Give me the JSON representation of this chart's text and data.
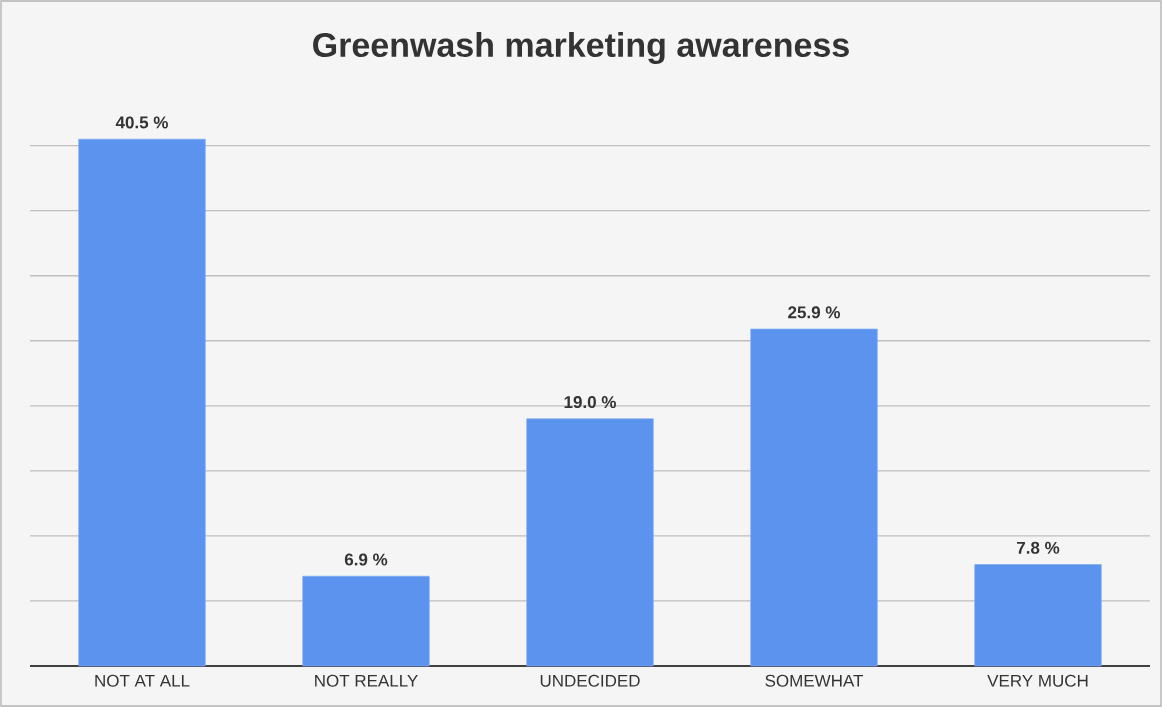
{
  "chart_data": {
    "type": "bar",
    "title": "Greenwash marketing awareness",
    "categories": [
      "NOT AT ALL",
      "NOT REALLY",
      "UNDECIDED",
      "SOMEWHAT",
      "VERY MUCH"
    ],
    "values": [
      40.5,
      6.9,
      19.0,
      25.9,
      7.8
    ],
    "value_labels": [
      "40.5 %",
      "6.9 %",
      "19.0 %",
      "25.9 %",
      "7.8 %"
    ],
    "color": "#5b93ee",
    "grid": "y",
    "tick_labels": "x"
  }
}
